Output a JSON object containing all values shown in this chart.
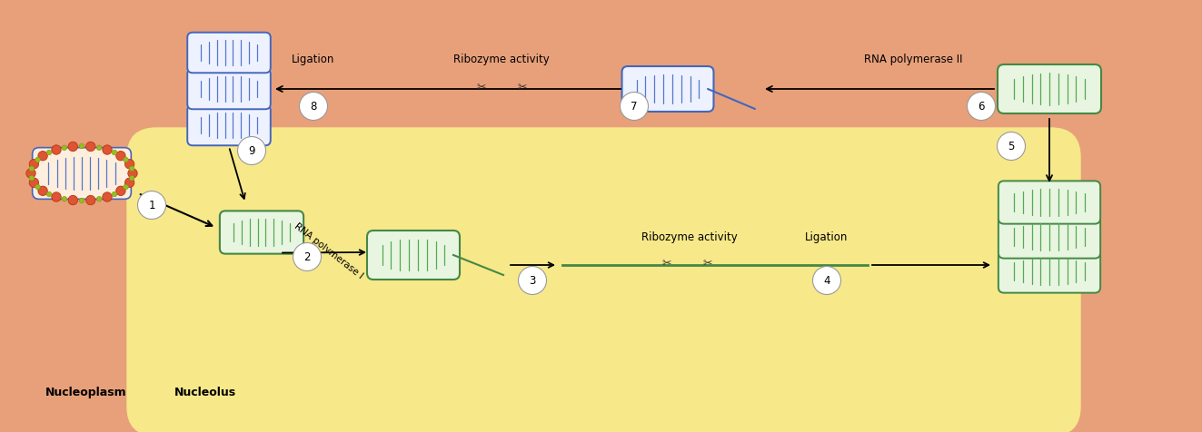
{
  "bg_color": "#E8A07A",
  "nucleolus_color": "#F7E88A",
  "blue_outline": "#4466BB",
  "blue_stripe": "#5577CC",
  "green_outline": "#448844",
  "green_stripe": "#55AA55",
  "green_fill": "#E8F5E0",
  "blue_fill": "#EEF2FF",
  "white_fill": "#FFFEF5",
  "hdv_red": "#DD5533",
  "hdv_green_dot": "#99BB22",
  "arrow_color": "#111111",
  "label_color": "#111111",
  "labels": {
    "nucleoplasm": "Nucleoplasm",
    "nucleolus": "Nucleolus",
    "ligation_top": "Ligation",
    "ribozyme_top": "Ribozyme activity",
    "rna_pol2": "RNA polymerase II",
    "rna_pol1": "RNA polymerase I",
    "ribozyme_bot": "Ribozyme activity",
    "ligation_bot": "Ligation"
  }
}
